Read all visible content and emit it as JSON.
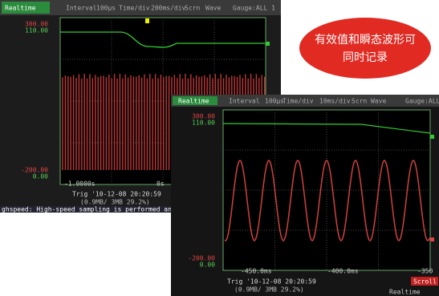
{
  "screen1": {
    "header": [
      "Realtime",
      "Interval",
      "100µs",
      "Time/div",
      "200ms/div",
      "Scrn",
      "Wave",
      "Gauge:ALL 1"
    ],
    "y_labels": [
      "300.00",
      "110.00",
      "-200.00",
      "0.00"
    ],
    "x_labels": [
      "-1.0000s",
      "0s"
    ],
    "trigger": "Trig '10-12-08 20:20:59",
    "memory": "(0.9MB/ 3MB 29.2%)",
    "status": "ghspeed: High-speed sampling is performed and t"
  },
  "screen2": {
    "header": [
      "Realtime",
      "Interval",
      "100µs",
      "Time/div",
      "10ms/div",
      "Scrn",
      "Wave",
      "Gauge:ALL"
    ],
    "y_labels": [
      "300.00",
      "110.00",
      "-200.00",
      "0.00"
    ],
    "x_labels": [
      "-450.0ms",
      "-400.0ms",
      "-350"
    ],
    "trigger": "Trig '10-12-08 20:20:59",
    "memory": "(0.9MB/ 3MB 29.2%)",
    "scroll": "Scroll",
    "mode": "Realtime"
  },
  "badge": [
    "有效值和瞬态波形可",
    "同时记录"
  ]
}
